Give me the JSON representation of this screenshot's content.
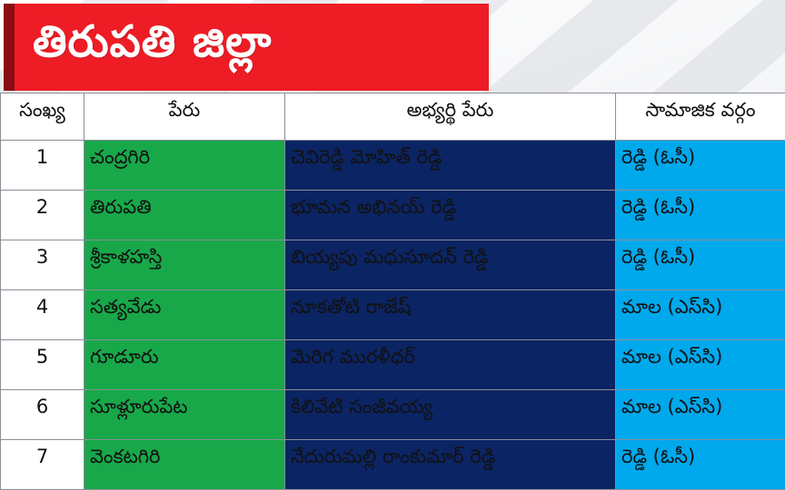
{
  "title": "తిరుపతి జిల్లా",
  "columns": [
    "సంఖ్య",
    "పేరు",
    "అభ్యర్థి పేరు",
    "సామాజిక వర్గం"
  ],
  "rows": [
    {
      "no": "1",
      "constituency": "చంద్రగిరి",
      "candidate": "చెవిరెడ్డి మోహిత్ రెడ్డి",
      "caste": "రెడ్డి (ఓసీ)"
    },
    {
      "no": "2",
      "constituency": "తిరుపతి",
      "candidate": "భూమన అభినయ్ రెడ్డి",
      "caste": "రెడ్డి (ఓసీ)"
    },
    {
      "no": "3",
      "constituency": "శ్రీకాళహస్తి",
      "candidate": "బియ్యపు మధుసూదన్ రెడ్డి",
      "caste": "రెడ్డి (ఓసీ)"
    },
    {
      "no": "4",
      "constituency": "సత్యవేడు",
      "candidate": "నూకతోటి రాజేష్",
      "caste": "మాల (ఎస్‌సి)"
    },
    {
      "no": "5",
      "constituency": "గూడూరు",
      "candidate": "మెరిగ మురళీధర్",
      "caste": "మాల (ఎస్‌సి)"
    },
    {
      "no": "6",
      "constituency": "సూళ్లూరుపేట",
      "candidate": "కిలివేటి సంజీవయ్య",
      "caste": "మాల (ఎస్‌సి)"
    },
    {
      "no": "7",
      "constituency": "వెంకటగిరి",
      "candidate": "నేదురుమల్లి రాంకుమార్ రెడ్డి",
      "caste": "రెడ్డి (ఓసీ)"
    }
  ],
  "colors": {
    "banner": "#ee1c25",
    "banner_edge": "#8b0d12",
    "constituency_bg": "#18a84a",
    "candidate_bg": "#0b2463",
    "caste_bg": "#00a8ec"
  }
}
